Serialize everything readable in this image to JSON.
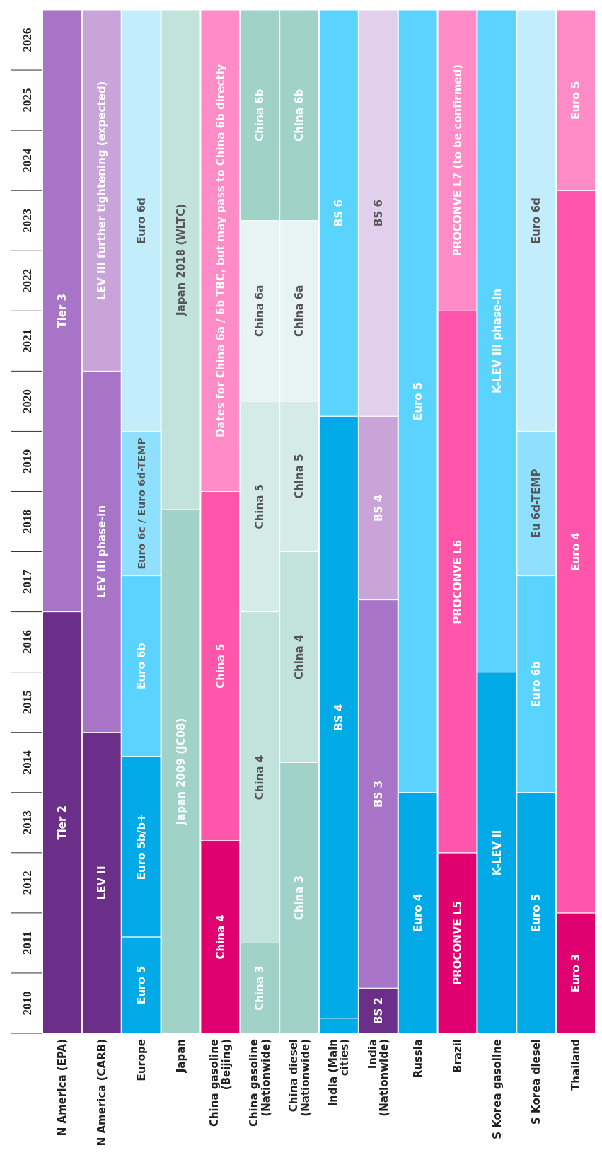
{
  "chart_data": {
    "type": "bar",
    "categories": [
      "N America (EPA)",
      "N America (CARB)",
      "Europe",
      "Japan",
      "China gasoline (Beijing)",
      "China gasoline (Nationwide)",
      "China diesel (Nationwide)",
      "India (Main cities)",
      "India (Nationwide)",
      "Russia",
      "Brazil",
      "S Korea gasoline",
      "S Korea diesel",
      "Thailand"
    ],
    "ylim": [
      2010,
      2027
    ],
    "yticks": [
      {
        "value": 2010,
        "label": null
      },
      {
        "value": 2010.5,
        "label": "2010"
      },
      {
        "value": 2011,
        "label": null
      },
      {
        "value": 2011.5,
        "label": "2011"
      },
      {
        "value": 2012,
        "label": null
      },
      {
        "value": 2012.5,
        "label": "2012"
      },
      {
        "value": 2013,
        "label": null
      },
      {
        "value": 2013.5,
        "label": "2013"
      },
      {
        "value": 2014,
        "label": null
      },
      {
        "value": 2014.5,
        "label": "2014"
      },
      {
        "value": 2015,
        "label": null
      },
      {
        "value": 2015.5,
        "label": "2015"
      },
      {
        "value": 2016,
        "label": null
      },
      {
        "value": 2016.5,
        "label": "2016"
      },
      {
        "value": 2017,
        "label": null
      },
      {
        "value": 2017.5,
        "label": "2017"
      },
      {
        "value": 2018,
        "label": null
      },
      {
        "value": 2018.5,
        "label": "2018"
      },
      {
        "value": 2019,
        "label": null
      },
      {
        "value": 2019.5,
        "label": "2019"
      },
      {
        "value": 2020,
        "label": null
      },
      {
        "value": 2020.5,
        "label": "2020"
      },
      {
        "value": 2021,
        "label": null
      },
      {
        "value": 2021.5,
        "label": "2021"
      },
      {
        "value": 2022,
        "label": null
      },
      {
        "value": 2022.5,
        "label": "2022"
      },
      {
        "value": 2023,
        "label": null
      },
      {
        "value": 2023.5,
        "label": "2023"
      },
      {
        "value": 2024,
        "label": null
      },
      {
        "value": 2024.5,
        "label": "2024"
      },
      {
        "value": 2025,
        "label": null
      },
      {
        "value": 2025.5,
        "label": "2025"
      },
      {
        "value": 2026,
        "label": null
      },
      {
        "value": 2026.5,
        "label": "2026"
      }
    ],
    "series": [
      {
        "base": [
          2010,
          2010,
          2010,
          2010,
          2010,
          2010,
          2010,
          2010,
          2010,
          2010,
          2010,
          2010,
          2010,
          2010
        ],
        "values": [
          7,
          5,
          1.6,
          8.7,
          3.2,
          1.5,
          4.5,
          0.25,
          0.75,
          4,
          3,
          6,
          4,
          2
        ],
        "colors": [
          "#6b2f8a",
          "#6b2f8a",
          "#00aae6",
          "#a0d2c8",
          "#e0006f",
          "#a0d2c8",
          "#a0d2c8",
          "#00aae6",
          "#6b2f8a",
          "#00aae6",
          "#e0006f",
          "#00aae6",
          "#00aae6",
          "#e0006f"
        ],
        "value_labels": [
          "Tier 2",
          "LEV II",
          "Euro 5",
          "Japan 2009 (JC08)",
          "China 4",
          "China 3",
          "China 3",
          null,
          "BS 2",
          "Euro 4",
          "PROCONVE L5",
          "K-LEV II",
          "Euro 5",
          "Euro 3"
        ]
      },
      {
        "base": [
          2017,
          2015,
          2011.6,
          2018.7,
          2013.2,
          2011.5,
          2014.5,
          2010.25,
          2010.75,
          2014,
          2013,
          2016,
          2014,
          2012
        ],
        "values": [
          10,
          6,
          3,
          8.3,
          5.8,
          5.5,
          3.5,
          10,
          6.45,
          13,
          9,
          11,
          3.6,
          12
        ],
        "colors": [
          "#a874c8",
          "#a874c8",
          "#00aae6",
          "#c2e2dc",
          "#ff55aa",
          "#c2e2dc",
          "#c2e2dc",
          "#00aae6",
          "#a874c8",
          "#5bd3ff",
          "#ff55aa",
          "#5bd3ff",
          "#5bd3ff",
          "#ff55aa"
        ],
        "value_labels": [
          "Tier 3",
          "LEV III phase-in",
          "Euro 5b/b+",
          "Japan 2018 (WLTC)",
          "China 5",
          "China 4",
          "China 4",
          "BS 4",
          "BS 3",
          "Euro 5",
          "PROCONVE L6",
          "K-LEV III phase-in",
          "Euro 6b",
          "Euro 4"
        ]
      },
      {
        "base": [
          null,
          2021,
          2014.6,
          null,
          2019,
          2017,
          2018,
          2020.25,
          2017.2,
          null,
          2022,
          null,
          2017.6,
          2024
        ],
        "values": [
          null,
          6,
          3,
          null,
          8,
          3.5,
          2.5,
          6.75,
          3.05,
          null,
          5,
          null,
          2.4,
          3
        ],
        "colors": [
          null,
          "#c8a4d8",
          "#5bd3ff",
          null,
          "#ff8cc6",
          "#d4ebe7",
          "#d4ebe7",
          "#5bd3ff",
          "#c8a4d8",
          null,
          "#ff8cc6",
          null,
          "#8fdfff",
          "#ff8cc6"
        ],
        "value_labels": [
          null,
          "LEV III further tightening (expected)",
          "Euro 6b",
          null,
          "Dates for China 6a / 6b TBC, but may pass to China 6b directly",
          "China 5",
          "China 5",
          "BS 6",
          "BS 4",
          null,
          "PROCONVE L7 (to be confirmed)",
          null,
          "Eu 6d-TEMP",
          "Euro 5"
        ]
      },
      {
        "base": [
          null,
          null,
          2017.6,
          null,
          null,
          2020.5,
          2020.5,
          null,
          2020.25,
          null,
          null,
          null,
          2020,
          null
        ],
        "values": [
          null,
          null,
          2.4,
          null,
          null,
          3,
          3,
          null,
          6.75,
          null,
          null,
          null,
          7,
          null
        ],
        "colors": [
          null,
          null,
          "#8fdfff",
          null,
          null,
          "#e8f4f2",
          "#e8f4f2",
          null,
          "#e0d0ec",
          null,
          null,
          null,
          "#c4edfb",
          null
        ],
        "value_labels": [
          null,
          null,
          "Euro 6c / Euro 6d-TEMP",
          null,
          null,
          "China 6a",
          "China 6a",
          null,
          "BS 6",
          null,
          null,
          null,
          "Euro 6d",
          null
        ]
      },
      {
        "base": [
          null,
          null,
          2020,
          null,
          null,
          2023.5,
          2023.5,
          null,
          null,
          null,
          null,
          null,
          null,
          null
        ],
        "values": [
          null,
          null,
          7,
          null,
          null,
          3.5,
          3.5,
          null,
          null,
          null,
          null,
          null,
          null,
          null
        ],
        "colors": [
          null,
          null,
          "#c4edfb",
          null,
          null,
          "#a0d2c8",
          "#a0d2c8",
          null,
          null,
          null,
          null,
          null,
          null,
          null
        ],
        "value_labels": [
          null,
          null,
          "Euro 6d",
          null,
          null,
          "China 6b",
          "China 6b",
          null,
          null,
          null,
          null,
          null,
          null,
          null
        ]
      }
    ]
  }
}
